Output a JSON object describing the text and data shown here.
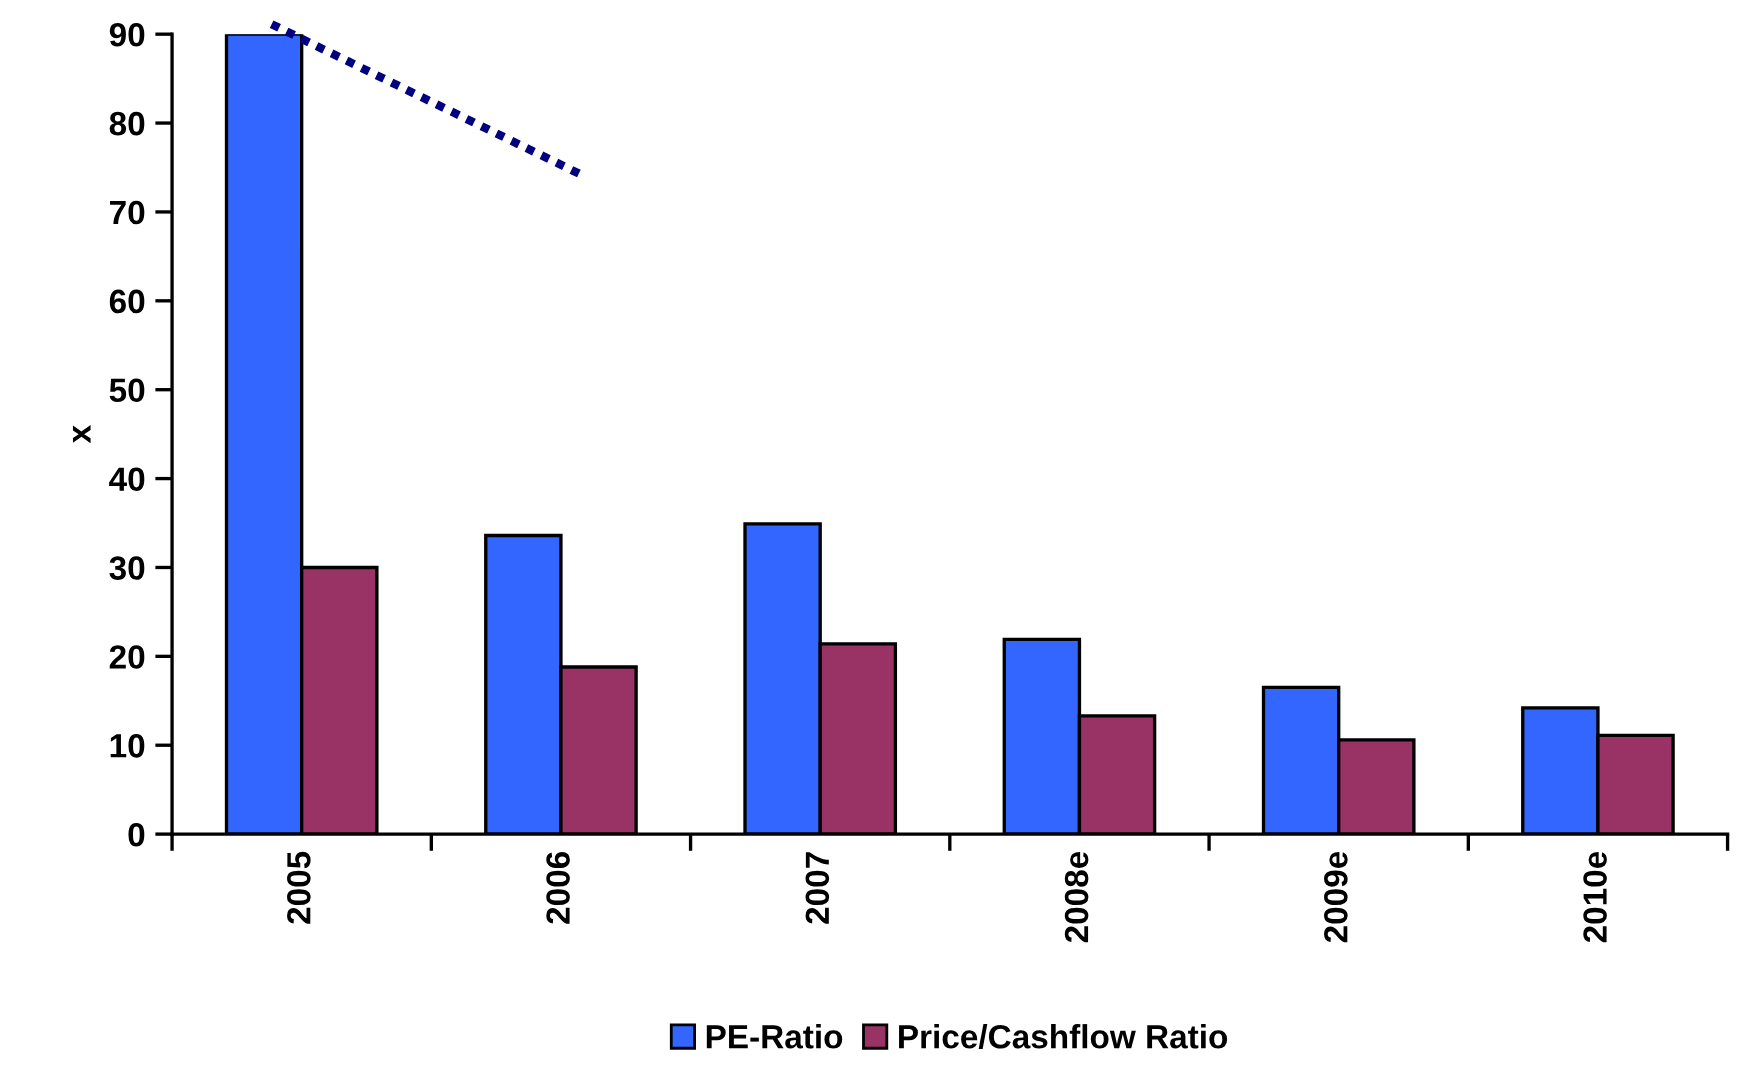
{
  "chart_data": {
    "type": "bar",
    "ylabel": "x",
    "categories": [
      "2005",
      "2006",
      "2007",
      "2008e",
      "2009e",
      "2010e"
    ],
    "series": [
      {
        "name": "PE-Ratio",
        "color": "#3366ff",
        "values": [
          90,
          33.6,
          34.9,
          21.9,
          16.5,
          14.2
        ]
      },
      {
        "name": "Price/Cashflow Ratio",
        "color": "#993366",
        "values": [
          30,
          18.8,
          21.4,
          13.3,
          10.6,
          11.1
        ]
      }
    ],
    "ylim": [
      0,
      90
    ],
    "yticks": [
      0,
      10,
      20,
      30,
      40,
      50,
      60,
      70,
      80,
      90
    ],
    "grid": false,
    "legend": "bottom"
  }
}
